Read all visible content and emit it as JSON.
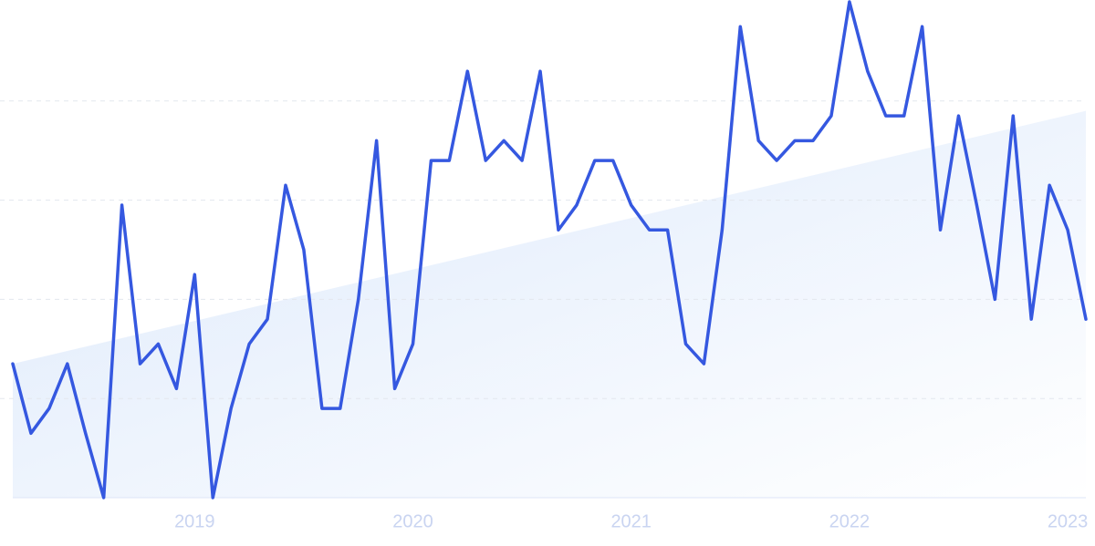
{
  "chart_data": {
    "type": "line",
    "categories": [
      null,
      null,
      null,
      null,
      null,
      null,
      null,
      null,
      null,
      null,
      "2019",
      null,
      null,
      null,
      null,
      null,
      null,
      null,
      null,
      null,
      null,
      null,
      "2020",
      null,
      null,
      null,
      null,
      null,
      null,
      null,
      null,
      null,
      null,
      null,
      "2021",
      null,
      null,
      null,
      null,
      null,
      null,
      null,
      null,
      null,
      null,
      null,
      "2022",
      null,
      null,
      null,
      null,
      null,
      null,
      null,
      null,
      null,
      null,
      null,
      "2023",
      null
    ],
    "series": [
      {
        "color": "#3558e0",
        "values": [
          27,
          13,
          18,
          27,
          13,
          0,
          59,
          27,
          31,
          22,
          45,
          0,
          18,
          31,
          36,
          63,
          50,
          18,
          18,
          40,
          72,
          22,
          31,
          68,
          68,
          86,
          68,
          72,
          68,
          86,
          54,
          59,
          68,
          68,
          59,
          54,
          54,
          31,
          27,
          54,
          95,
          72,
          68,
          72,
          72,
          77,
          100,
          86,
          77,
          77,
          95,
          54,
          77,
          59,
          40,
          77,
          36,
          63,
          54,
          36
        ]
      }
    ],
    "trend": {
      "color": "#dbe8fb",
      "values": [
        27,
        78
      ]
    },
    "ylim": [
      0,
      100
    ],
    "yticks": [
      0,
      20,
      40,
      60,
      80
    ],
    "grid": true
  }
}
